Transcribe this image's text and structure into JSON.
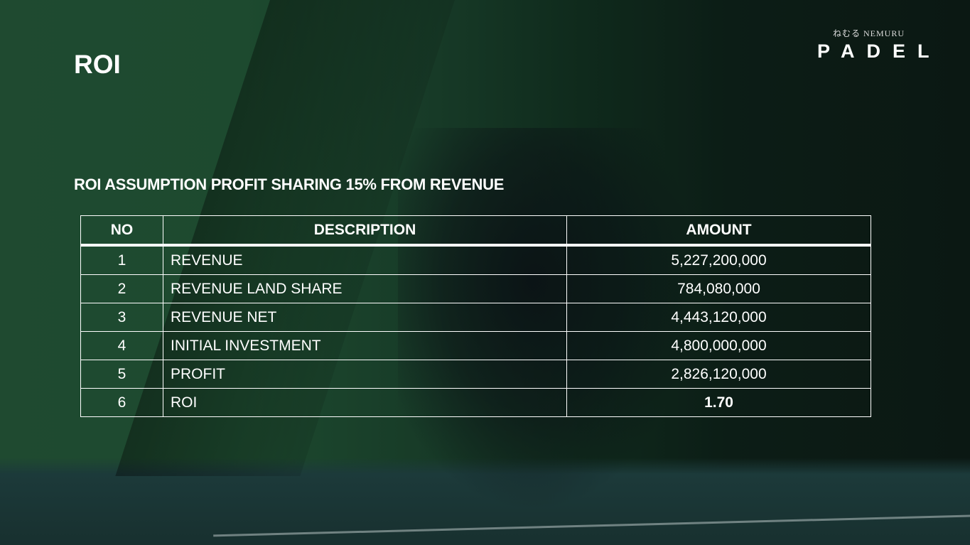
{
  "slide": {
    "title": "ROI",
    "subtitle": "ROI ASSUMPTION PROFIT SHARING 15% FROM REVENUE"
  },
  "logo": {
    "sub": "ねむる NEMURU",
    "main": "PADEL"
  },
  "table": {
    "headers": [
      "NO",
      "DESCRIPTION",
      "AMOUNT"
    ],
    "rows": [
      {
        "no": "1",
        "description": "REVENUE",
        "amount": "5,227,200,000"
      },
      {
        "no": "2",
        "description": "REVENUE LAND SHARE",
        "amount": "784,080,000"
      },
      {
        "no": "3",
        "description": "REVENUE NET",
        "amount": "4,443,120,000"
      },
      {
        "no": "4",
        "description": "INITIAL INVESTMENT",
        "amount": "4,800,000,000"
      },
      {
        "no": "5",
        "description": "PROFIT",
        "amount": "2,826,120,000"
      },
      {
        "no": "6",
        "description": "ROI",
        "amount": "1.70"
      }
    ]
  }
}
